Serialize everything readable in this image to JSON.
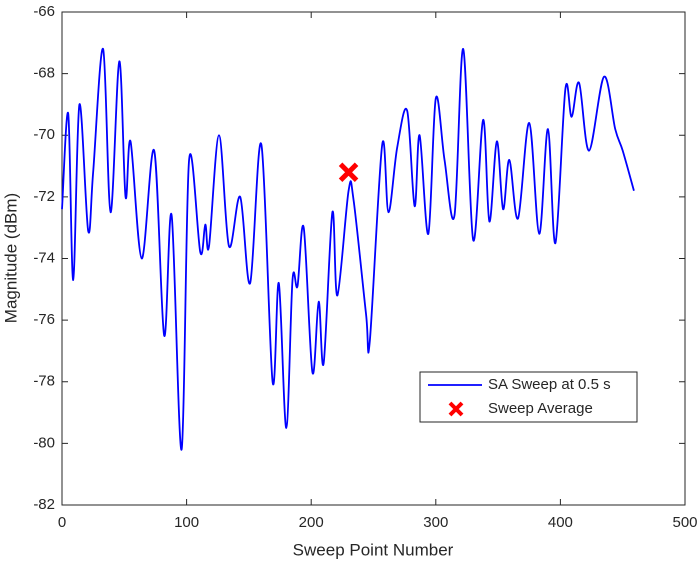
{
  "chart_data": {
    "type": "line",
    "xlabel": "Sweep Point Number",
    "ylabel": "Magnitude (dBm)",
    "xlim": [
      0,
      500
    ],
    "ylim": [
      -82,
      -66
    ],
    "xticks": [
      0,
      100,
      200,
      300,
      400,
      500
    ],
    "yticks": [
      -82,
      -80,
      -78,
      -76,
      -74,
      -72,
      -70,
      -68,
      -66
    ],
    "legend": "lower right",
    "series": [
      {
        "name": "SA Sweep at 0.5 s",
        "color": "#0000ff",
        "x": [
          0,
          5,
          9,
          14,
          21,
          25,
          33,
          39,
          46,
          51,
          55,
          64,
          74,
          82,
          88,
          96,
          102,
          111,
          115,
          118,
          126,
          134,
          143,
          151,
          160,
          169,
          174,
          180,
          185,
          189,
          194,
          201,
          206,
          210,
          217,
          221,
          230,
          234,
          244,
          247,
          257,
          262,
          269,
          277,
          283,
          287,
          294,
          300,
          307,
          315,
          322,
          330,
          338,
          343,
          349,
          354,
          359,
          366,
          375,
          383,
          390,
          396,
          404,
          409,
          415,
          423,
          435,
          444,
          450,
          459
        ],
        "values": [
          -72.4,
          -69.3,
          -74.7,
          -69.0,
          -73.1,
          -71.2,
          -67.2,
          -72.5,
          -67.6,
          -72.0,
          -70.2,
          -74.0,
          -70.5,
          -76.5,
          -72.6,
          -80.2,
          -70.8,
          -73.8,
          -72.9,
          -73.6,
          -70.0,
          -73.6,
          -72.0,
          -74.8,
          -70.3,
          -78.0,
          -74.8,
          -79.5,
          -74.7,
          -74.9,
          -73.0,
          -77.7,
          -75.4,
          -77.4,
          -72.5,
          -75.2,
          -71.8,
          -72.1,
          -75.8,
          -76.7,
          -70.3,
          -72.5,
          -70.4,
          -69.2,
          -72.3,
          -70.0,
          -73.2,
          -68.8,
          -70.8,
          -72.6,
          -67.2,
          -73.4,
          -69.5,
          -72.8,
          -70.2,
          -72.4,
          -70.8,
          -72.7,
          -69.6,
          -73.2,
          -69.8,
          -73.5,
          -68.5,
          -69.4,
          -68.3,
          -70.5,
          -68.1,
          -69.8,
          -70.5,
          -71.8
        ]
      },
      {
        "name": "Sweep Average",
        "color": "#ff0000",
        "marker": "x",
        "x": [
          230
        ],
        "values": [
          -71.2
        ]
      }
    ]
  }
}
